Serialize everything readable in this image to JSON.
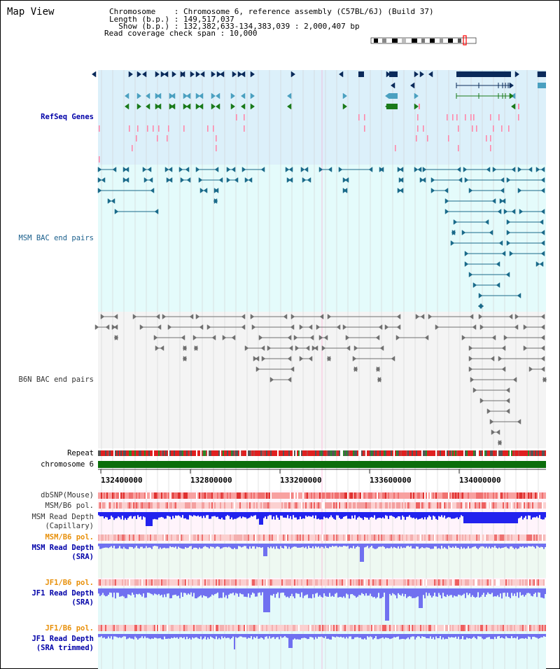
{
  "window_title": "Map View",
  "header": {
    "chromosome": "Chromosome    : Chromosome 6, reference assembly (C57BL/6J) (Build 37)",
    "length": "Length (b.p.) : 149,517,037",
    "show": "  Show (b.p.) : 132,382,633-134,383,039 : 2,000,407 bp",
    "coverage": "Read coverage check span : 10,000"
  },
  "tracks": {
    "refseq": "RefSeq Genes",
    "msm_bac": "MSM BAC end pairs",
    "b6n_bac": "B6N BAC end pairs",
    "repeat": "Repeat",
    "chromosome": "chromosome 6",
    "dbsnp": "dbSNP(Mouse)",
    "msm_b6_pol": "MSM/B6 pol.",
    "msm_depth_cap_1": "MSM Read Depth",
    "msm_depth_cap_2": "(Capillary)",
    "msm_b6_pol_2": "MSM/B6 pol.",
    "msm_depth_sra_1": "MSM Read Depth",
    "msm_depth_sra_2": "(SRA)",
    "jf1_b6_pol": "JF1/B6 pol.",
    "jf1_depth_sra_1": "JF1 Read Depth",
    "jf1_depth_sra_2": "(SRA)",
    "jf1_b6_pol_2": "JF1/B6 pol.",
    "jf1_depth_trim_1": "JF1 Read Depth",
    "jf1_depth_trim_2": "(SRA trimmed)"
  },
  "axis": {
    "ticks": [
      "132400000",
      "132800000",
      "133200000",
      "133600000",
      "134000000"
    ]
  },
  "colors": {
    "refseq_bg": "#dcf0fa",
    "msm_bg": "#e4fbfb",
    "b6n_bg": "#f4f4f4",
    "gene_dark": "#0a2a5a",
    "gene_teal": "#4aa0c0",
    "gene_green": "#1a7a1a",
    "pink": "#ff88aa",
    "msm_line": "#1a6a8a",
    "b6n_line": "#707070",
    "chromosome_bar": "#0a6e0a",
    "depth_blue": "#2222ee",
    "depth_light": "#8888ee",
    "depth_sra": "#7070f0",
    "pol_red": "#ee3333"
  }
}
